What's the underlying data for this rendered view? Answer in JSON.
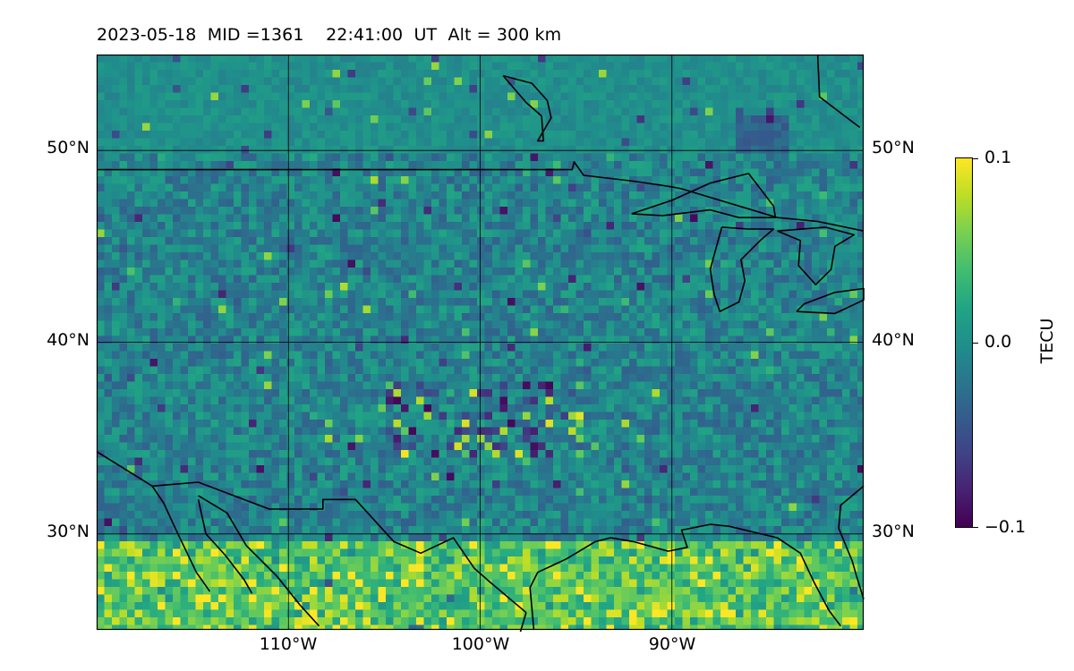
{
  "title": {
    "date": "2023-05-18",
    "mid": "MID =1361",
    "time": "22:41:00",
    "ut": "UT",
    "alt": "Alt = 300 km",
    "full": "2023-05-18  MID =1361    22:41:00  UT  Alt = 300 km"
  },
  "map": {
    "projection": "equirectangular",
    "lon_range": [
      -120,
      -80
    ],
    "lat_range": [
      25,
      55
    ],
    "gridlines": true,
    "lat_ticks": [
      {
        "value": 50,
        "label": "50°N"
      },
      {
        "value": 40,
        "label": "40°N"
      },
      {
        "value": 30,
        "label": "30°N"
      }
    ],
    "lon_ticks": [
      {
        "value": -110,
        "label": "110°W"
      },
      {
        "value": -100,
        "label": "100°W"
      },
      {
        "value": -90,
        "label": "90°W"
      }
    ],
    "field": "TEC perturbation (pixelated grid)",
    "bright_regions": "south near 26-30°N, and scattered band near 35-37°N, 95-105°W",
    "dark_regions": "scattered near 36-38°N, 97-104°W"
  },
  "colorbar": {
    "label": "TECU",
    "colormap": "viridis",
    "min": -0.1,
    "max": 0.1,
    "ticks": [
      {
        "value": 0.1,
        "label": "0.1"
      },
      {
        "value": 0.0,
        "label": "0.0"
      },
      {
        "value": -0.1,
        "label": "−0.1"
      }
    ]
  }
}
